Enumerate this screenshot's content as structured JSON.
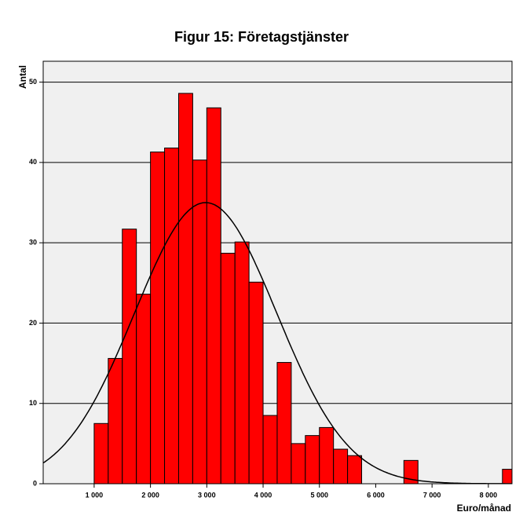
{
  "chart_data": {
    "type": "histogram",
    "title": "Figur 15: Företagstjänster",
    "x_label": "Euro/månad",
    "y_label": "Antal",
    "bins": [
      1000,
      1250,
      1500,
      1750,
      2000,
      2250,
      2500,
      2750,
      3000,
      3250,
      3500,
      3750,
      4000,
      4250,
      4500,
      4750,
      5000,
      5250,
      5500,
      5750,
      6000,
      6250,
      6500,
      6750,
      7000,
      7250,
      7500,
      7750,
      8000,
      8250,
      8500
    ],
    "values": [
      7.5,
      15.6,
      31.7,
      23.6,
      41.3,
      41.8,
      48.6,
      40.3,
      46.8,
      28.7,
      30.1,
      25.1,
      8.5,
      15.1,
      5.0,
      6.0,
      7.0,
      4.3,
      3.5,
      0,
      0,
      0,
      2.9,
      0,
      0,
      0,
      0,
      0,
      0,
      1.8
    ],
    "color": "#ff0000",
    "normal_curve": {
      "mean": 2980,
      "std": 1264,
      "peak": 35
    },
    "xlim": [
      95,
      8420
    ],
    "ylim": [
      0,
      52.6
    ],
    "xticks": [
      {
        "value": 1000,
        "label": "1 000"
      },
      {
        "value": 2000,
        "label": "2 000"
      },
      {
        "value": 3000,
        "label": "3 000"
      },
      {
        "value": 4000,
        "label": "4 000"
      },
      {
        "value": 5000,
        "label": "5 000"
      },
      {
        "value": 6000,
        "label": "6 000"
      },
      {
        "value": 7000,
        "label": "7 000"
      },
      {
        "value": 8000,
        "label": "8 000"
      }
    ],
    "yticks": [
      0,
      10,
      20,
      30,
      40,
      50
    ],
    "grid": true
  }
}
